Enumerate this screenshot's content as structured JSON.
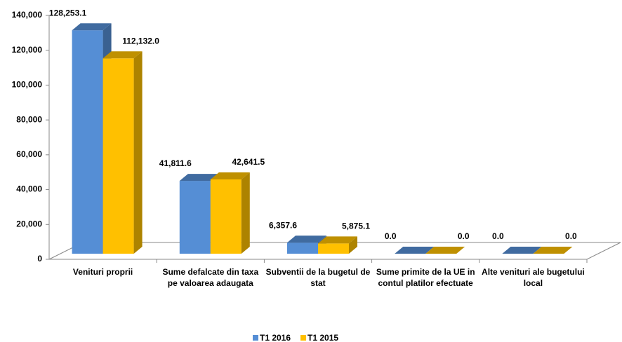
{
  "chart_data": {
    "type": "bar3d",
    "categories": [
      "Venituri proprii",
      "Sume defalcate din taxa pe valoarea adaugata",
      "Subventii de la bugetul de stat",
      "Sume primite de la UE in contul platilor efectuate",
      "Alte venituri ale bugetului local"
    ],
    "series": [
      {
        "name": "T1 2016",
        "color": "#558ed5",
        "values": [
          128253.1,
          41811.6,
          6357.6,
          0.0,
          0.0
        ],
        "value_labels": [
          "128,253.1",
          "41,811.6",
          "6,357.6",
          "0.0",
          "0.0"
        ]
      },
      {
        "name": "T1 2015",
        "color": "#ffc000",
        "values": [
          112132.0,
          42641.5,
          5875.1,
          0.0,
          0.0
        ],
        "value_labels": [
          "112,132.0",
          "42,641.5",
          "5,875.1",
          "0.0",
          "0.0"
        ]
      }
    ],
    "ylim": [
      0,
      140000
    ],
    "yticks": [
      0,
      {
        "value": 20000,
        "label": "20,000"
      },
      {
        "value": 40000,
        "label": "40,000"
      },
      {
        "value": 60000,
        "label": "60,000"
      },
      {
        "value": 80000,
        "label": "80,000"
      },
      {
        "value": 100000,
        "label": "100,000"
      },
      {
        "value": 120000,
        "label": "120,000"
      },
      {
        "value": 140000,
        "label": "140,000"
      }
    ],
    "legend": "bottom"
  }
}
